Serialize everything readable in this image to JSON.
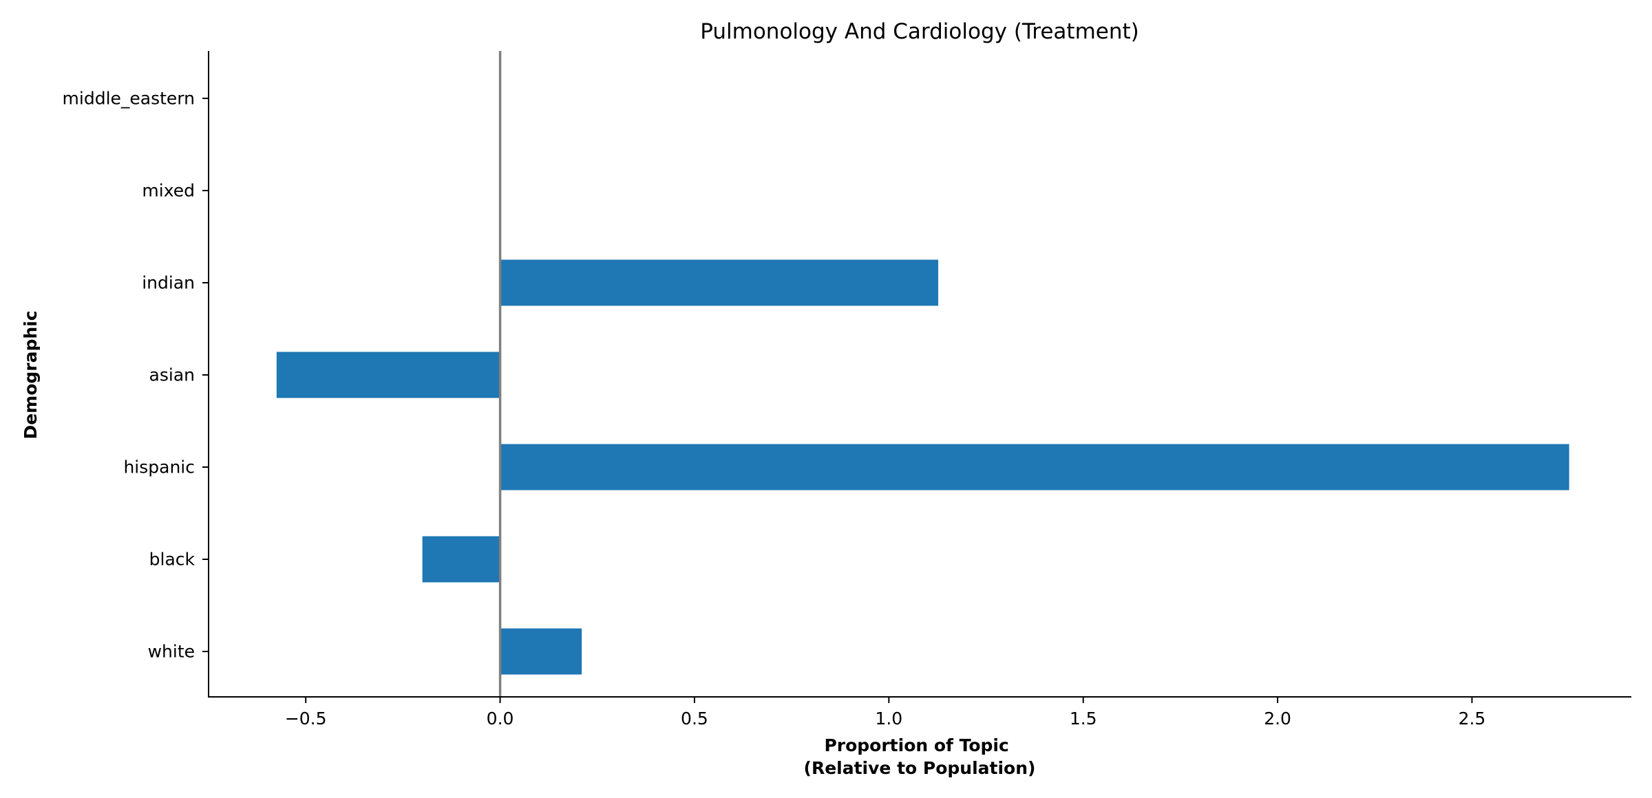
{
  "chart_data": {
    "type": "bar",
    "orientation": "horizontal",
    "title": "Pulmonology And Cardiology (Treatment)",
    "xlabel_line1": "Proportion of Topic",
    "xlabel_line2": "(Relative to Population)",
    "ylabel": "Demographic",
    "categories": [
      "white",
      "black",
      "hispanic",
      "asian",
      "indian",
      "mixed",
      "middle_eastern"
    ],
    "values": [
      0.21,
      -0.2,
      2.75,
      -0.575,
      1.127,
      0,
      0
    ],
    "xlim": [
      -0.75,
      2.91
    ],
    "xticks": [
      -0.5,
      0.0,
      0.5,
      1.0,
      1.5,
      2.0,
      2.5
    ],
    "xtick_labels": [
      "−0.5",
      "0.0",
      "0.5",
      "1.0",
      "1.5",
      "2.0",
      "2.5"
    ],
    "grid": false,
    "legend": "none",
    "bar_color": "#1f77b4",
    "zero_line_color": "#808080"
  }
}
